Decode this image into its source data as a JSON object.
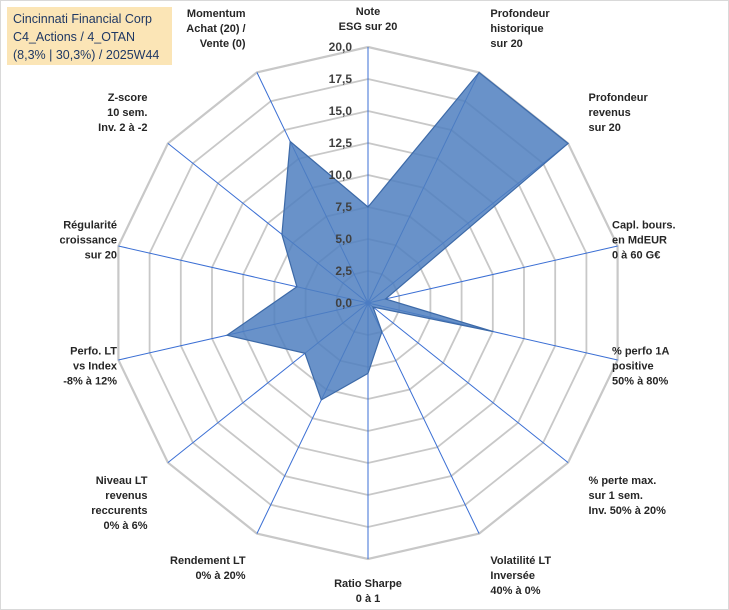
{
  "title": {
    "line1": "Cincinnati Financial Corp",
    "line2": "C4_Actions / 4_OTAN",
    "line3": "(8,3% | 30,3%) / 2025W44"
  },
  "chart_data": {
    "type": "radar",
    "rmax": 20,
    "ticks": [
      "0,0",
      "2,5",
      "5,0",
      "7,5",
      "10,0",
      "12,5",
      "15,0",
      "17,5",
      "20,0"
    ],
    "tick_values": [
      0,
      2.5,
      5,
      7.5,
      10,
      12.5,
      15,
      17.5,
      20
    ],
    "axes": [
      {
        "label": [
          "Note",
          "ESG sur 20"
        ],
        "value": 7.5
      },
      {
        "label": [
          "Profondeur",
          "historique",
          "sur 20"
        ],
        "value": 20
      },
      {
        "label": [
          "Profondeur",
          "revenus",
          "sur 20"
        ],
        "value": 20
      },
      {
        "label": [
          "Capl. bours.",
          "en MdEUR",
          "0 à 60 G€"
        ],
        "value": 1.4
      },
      {
        "label": [
          "% perfo 1A",
          "positive",
          "50% à 80%"
        ],
        "value": 10
      },
      {
        "label": [
          "% perte max.",
          "sur 1 sem.",
          "Inv. 50% à 20%"
        ],
        "value": 0.5
      },
      {
        "label": [
          "Volatilité LT",
          "Inversée",
          "40% à 0%"
        ],
        "value": 2.5
      },
      {
        "label": [
          "Ratio Sharpe",
          "0 à 1"
        ],
        "value": 5.5
      },
      {
        "label": [
          "Rendement LT",
          "0% à 20%"
        ],
        "value": 8.4
      },
      {
        "label": [
          "Niveau LT",
          "revenus",
          "reccurents",
          "0% à 6%"
        ],
        "value": 6.3
      },
      {
        "label": [
          "Perfo. LT",
          "vs Index",
          "-8% à 12%"
        ],
        "value": 11.3
      },
      {
        "label": [
          "Régularité",
          "croissance",
          "sur 20"
        ],
        "value": 5.7
      },
      {
        "label": [
          "Z-score",
          "10 sem.",
          "Inv. 2 à -2"
        ],
        "value": 8.6
      },
      {
        "label": [
          "Momentum",
          "Achat (20) /",
          "Vente (0)"
        ],
        "value": 14
      }
    ],
    "colors": {
      "fill": "#4f7fbf",
      "stroke": "#3d6aa8",
      "grid": "#c8c8c8",
      "spoke": "#3b6fd4"
    }
  }
}
